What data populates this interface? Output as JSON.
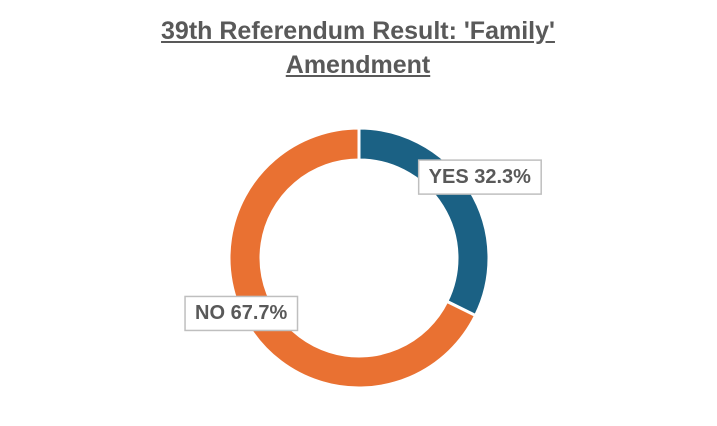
{
  "chart_data": {
    "type": "donut",
    "title": "39th Referendum Result: 'Family' Amendment",
    "categories": [
      "YES",
      "NO"
    ],
    "values": [
      32.3,
      67.7
    ],
    "value_labels": [
      "32.3%",
      "67.7%"
    ],
    "colors": [
      "#1b6184",
      "#e97132"
    ]
  }
}
